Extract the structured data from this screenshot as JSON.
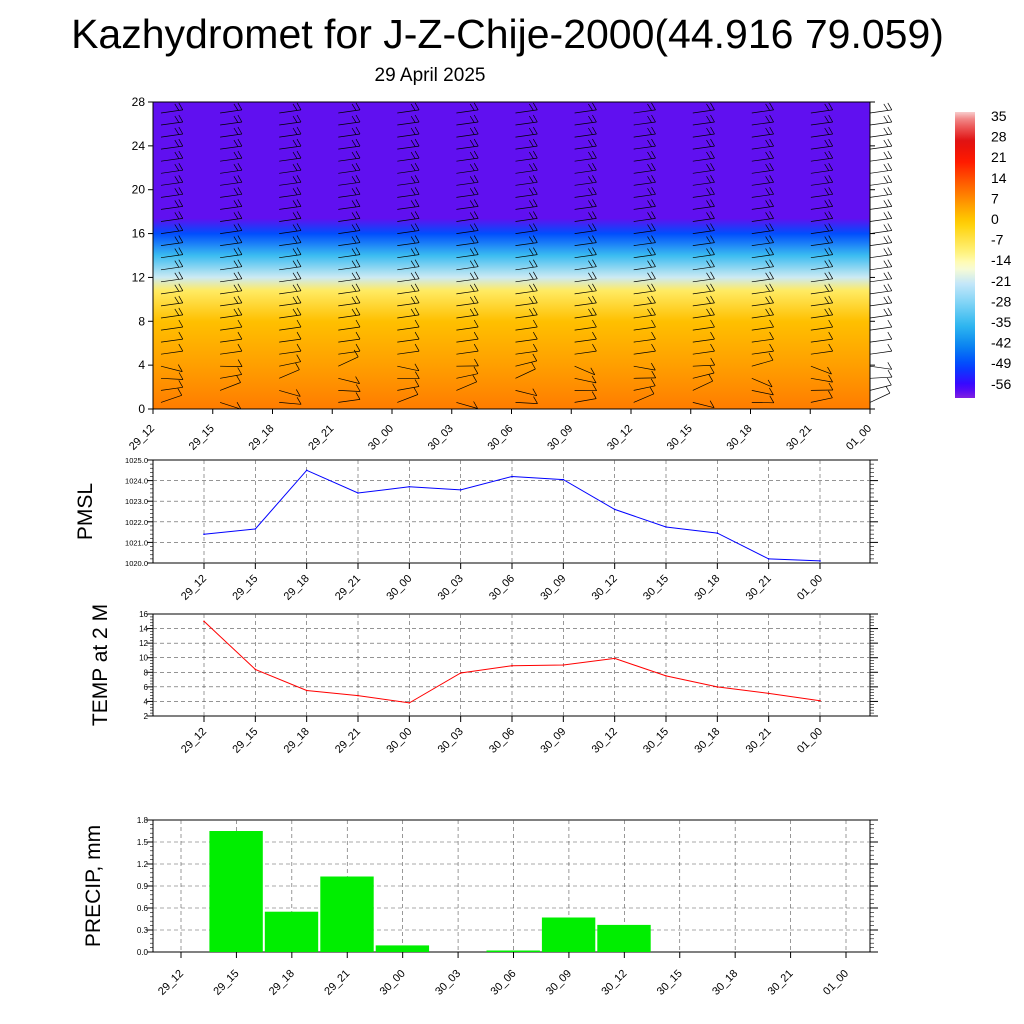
{
  "title": "Kazhydromet for J-Z-Chije-2000(44.916 79.059)",
  "subtitle": "29 April 2025",
  "time_labels": [
    "29_12",
    "29_15",
    "29_18",
    "29_21",
    "30_00",
    "30_03",
    "30_06",
    "30_09",
    "30_12",
    "30_15",
    "30_18",
    "30_21",
    "01_00"
  ],
  "chart_data": [
    {
      "type": "heatmap",
      "name": "vertical-section",
      "x": [
        "29_12",
        "29_15",
        "29_18",
        "29_21",
        "30_00",
        "30_03",
        "30_06",
        "30_09",
        "30_12",
        "30_15",
        "30_18",
        "30_21",
        "01_00"
      ],
      "y_ticks": [
        "0",
        "4",
        "8",
        "12",
        "16",
        "20",
        "24",
        "28"
      ],
      "ylim": [
        0,
        28
      ],
      "field": "temperature",
      "temperature_by_level": [
        [
          0,
          10
        ],
        [
          4,
          6
        ],
        [
          8,
          2
        ],
        [
          10.8,
          -8
        ],
        [
          12,
          -20
        ],
        [
          14,
          -34
        ],
        [
          16,
          -48
        ],
        [
          17.4,
          -58
        ],
        [
          28,
          -58
        ]
      ],
      "colorbar": {
        "labels": [
          "35",
          "28",
          "21",
          "14",
          "7",
          "0",
          "-7",
          "-14",
          "-21",
          "-28",
          "-35",
          "-42",
          "-49",
          "-56"
        ],
        "range": [
          -60,
          38
        ]
      },
      "wind_barbs": true
    },
    {
      "type": "line",
      "ylabel": "PMSL",
      "x": [
        "29_12",
        "29_15",
        "29_18",
        "29_21",
        "30_00",
        "30_03",
        "30_06",
        "30_09",
        "30_12",
        "30_15",
        "30_18",
        "30_21",
        "01_00"
      ],
      "values": [
        1021.4,
        1021.65,
        1024.5,
        1023.4,
        1023.7,
        1023.55,
        1024.2,
        1024.05,
        1022.6,
        1021.75,
        1021.45,
        1020.2,
        1020.1
      ],
      "ylim": [
        1020.0,
        1025.0
      ],
      "y_ticks": [
        "1020.0",
        "1021.0",
        "1022.0",
        "1023.0",
        "1024.0",
        "1025.0"
      ],
      "color": "#0000ff",
      "grid": true
    },
    {
      "type": "line",
      "ylabel": "TEMP at 2 M",
      "x": [
        "29_12",
        "29_15",
        "29_18",
        "29_21",
        "30_00",
        "30_03",
        "30_06",
        "30_09",
        "30_12",
        "30_15",
        "30_18",
        "30_21",
        "01_00"
      ],
      "values": [
        15.0,
        8.4,
        5.5,
        4.8,
        3.8,
        7.9,
        8.9,
        9.0,
        9.9,
        7.5,
        6.0,
        5.1,
        4.1
      ],
      "ylim": [
        2,
        16
      ],
      "y_ticks": [
        "2",
        "4",
        "6",
        "8",
        "10",
        "12",
        "14",
        "16"
      ],
      "color": "#ff0000",
      "grid": true
    },
    {
      "type": "bar",
      "ylabel": "PRECIP, mm",
      "categories": [
        "29_12",
        "29_15",
        "29_18",
        "29_21",
        "30_00",
        "30_03",
        "30_06",
        "30_09",
        "30_12",
        "30_15",
        "30_18",
        "30_21",
        "01_00"
      ],
      "values": [
        0,
        1.65,
        0.55,
        1.03,
        0.09,
        0,
        0.02,
        0.47,
        0.37,
        0,
        0,
        0,
        0
      ],
      "ylim": [
        0,
        1.8
      ],
      "y_ticks": [
        "0.0",
        "0.3",
        "0.6",
        "0.9",
        "1.2",
        "1.5",
        "1.8"
      ],
      "color": "#00ee00",
      "grid": true
    }
  ]
}
